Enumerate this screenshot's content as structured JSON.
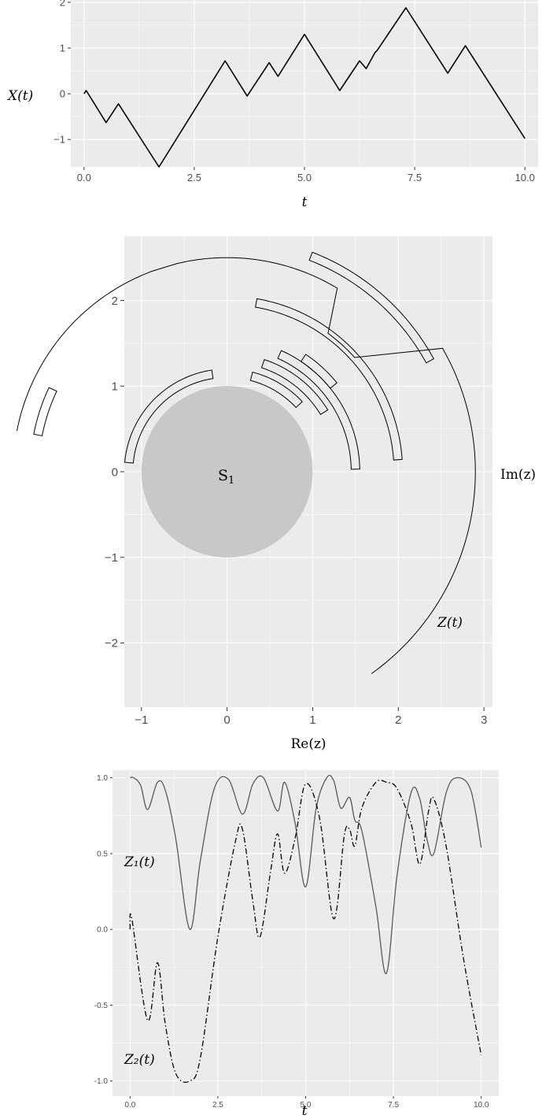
{
  "chart_data": [
    {
      "type": "line",
      "ylabel": "X(t)",
      "xlabel": "t",
      "xlim": [
        -0.3,
        10.3
      ],
      "ylim": [
        -1.6,
        2.05
      ],
      "x_ticks": [
        0.0,
        2.5,
        5.0,
        7.5,
        10.0
      ],
      "x_tick_labels": [
        "0.0",
        "2.5",
        "5.0",
        "7.5",
        "10.0"
      ],
      "y_ticks": [
        -1,
        0,
        1,
        2
      ],
      "y_tick_labels": [
        "−1",
        "0",
        "1",
        "2"
      ],
      "grid": true,
      "series": [
        {
          "color": "#000000",
          "x": [
            0.0,
            0.05,
            0.5,
            0.78,
            1.7,
            3.2,
            3.7,
            4.2,
            4.4,
            5.0,
            5.8,
            6.25,
            6.4,
            6.6,
            6.65,
            7.3,
            8.25,
            8.65,
            10.0
          ],
          "y": [
            0.0,
            0.07,
            -0.63,
            -0.22,
            -1.6,
            0.72,
            -0.05,
            0.68,
            0.38,
            1.3,
            0.07,
            0.72,
            0.55,
            0.9,
            0.95,
            1.88,
            0.45,
            1.05,
            -0.98
          ]
        }
      ]
    },
    {
      "type": "scatter",
      "xlabel": "Re(z)",
      "right_label": "Im(z)",
      "xlim": [
        -1.2,
        3.1
      ],
      "ylim": [
        -2.75,
        2.75
      ],
      "x_ticks": [
        -1,
        0,
        1,
        2,
        3
      ],
      "x_tick_labels": [
        "−1",
        "0",
        "1",
        "2",
        "3"
      ],
      "y_ticks": [
        -2,
        -1,
        0,
        1,
        2
      ],
      "y_tick_labels": [
        "−2",
        "−1",
        "0",
        "1",
        "2"
      ],
      "grid": true,
      "disk": {
        "center": [
          0,
          0
        ],
        "radius": 1,
        "color": "#c8c8c8",
        "label": "S"
      },
      "disk_label_sub": "1",
      "curve_label": "Z(t)",
      "curve": {
        "arcs": [
          {
            "r": 2.5,
            "t_start": 0.0,
            "t_end": 1.7
          },
          {
            "r": 2.5,
            "t_start": 1.9,
            "t_end": 3.2
          },
          {
            "r": 2.0,
            "t_start": 3.35,
            "t_end": 3.7
          },
          {
            "r": 2.9,
            "t_start": 4.05,
            "t_end": 6.5
          }
        ]
      },
      "ribbons": [
        {
          "r_in": 1.1,
          "r_out": 1.2,
          "theta_start": 1.72,
          "theta_end": 3.05
        },
        {
          "r_in": 1.1,
          "r_out": 1.2,
          "theta_start": 0.75,
          "theta_end": 1.32
        },
        {
          "r_in": 1.28,
          "r_out": 1.38,
          "theta_start": 0.55,
          "theta_end": 1.25
        },
        {
          "r_in": 1.45,
          "r_out": 1.55,
          "theta_start": 0.02,
          "theta_end": 1.15
        },
        {
          "r_in": 1.95,
          "r_out": 2.05,
          "theta_start": 0.07,
          "theta_end": 1.4
        },
        {
          "r_in": 2.2,
          "r_out": 2.3,
          "theta_start": 2.7,
          "theta_end": 2.95
        },
        {
          "r_in": 1.55,
          "r_out": 1.65,
          "theta_start": 0.68,
          "theta_end": 0.98
        },
        {
          "r_in": 2.65,
          "r_out": 2.75,
          "theta_start": 0.5,
          "theta_end": 1.2
        }
      ]
    },
    {
      "type": "line",
      "xlabel": "t",
      "xlim": [
        -0.5,
        10.5
      ],
      "ylim": [
        -1.1,
        1.05
      ],
      "x_ticks": [
        0.0,
        2.5,
        5.0,
        7.5,
        10.0
      ],
      "x_tick_labels": [
        "0.0",
        "2.5",
        "5.0",
        "7.5",
        "10.0"
      ],
      "y_ticks": [
        -1.0,
        -0.5,
        0.0,
        0.5,
        1.0
      ],
      "y_tick_labels": [
        "-1.0",
        "-0.5",
        "0.0",
        "0.5",
        "1.0"
      ],
      "grid": true,
      "series": [
        {
          "name": "Z₁(t)",
          "color": "#595959",
          "dash": "solid",
          "x": [
            0.0,
            0.1,
            0.3,
            0.5,
            0.78,
            1.0,
            1.3,
            1.7,
            2.0,
            2.4,
            2.8,
            3.2,
            3.5,
            3.8,
            4.2,
            4.4,
            4.7,
            5.0,
            5.3,
            5.6,
            5.8,
            6.0,
            6.25,
            6.4,
            6.6,
            7.0,
            7.3,
            7.6,
            8.0,
            8.25,
            8.45,
            8.65,
            9.0,
            9.3,
            9.7,
            10.0
          ],
          "y": [
            1.0,
            1.0,
            0.95,
            0.79,
            0.97,
            0.92,
            0.6,
            0.0,
            0.45,
            0.93,
            0.99,
            0.76,
            0.96,
            1.0,
            0.78,
            0.97,
            0.7,
            0.28,
            0.8,
            1.0,
            0.98,
            0.8,
            0.87,
            0.72,
            0.65,
            0.15,
            -0.29,
            0.35,
            0.9,
            0.86,
            0.6,
            0.5,
            0.9,
            1.0,
            0.92,
            0.54
          ]
        },
        {
          "name": "Z₂(t)",
          "color": "#000000",
          "dash": "dashdot",
          "x": [
            0.0,
            0.05,
            0.5,
            0.78,
            1.0,
            1.3,
            1.7,
            2.0,
            2.5,
            3.0,
            3.2,
            3.5,
            3.7,
            4.0,
            4.2,
            4.4,
            4.7,
            5.0,
            5.4,
            5.8,
            6.1,
            6.25,
            6.4,
            6.6,
            7.0,
            7.3,
            7.6,
            8.0,
            8.25,
            8.5,
            8.65,
            9.0,
            9.5,
            10.0
          ],
          "y": [
            0.0,
            0.07,
            -0.6,
            -0.22,
            -0.62,
            -0.95,
            -1.0,
            -0.85,
            -0.05,
            0.58,
            0.66,
            0.18,
            -0.05,
            0.38,
            0.63,
            0.37,
            0.6,
            0.96,
            0.73,
            0.07,
            0.62,
            0.66,
            0.55,
            0.8,
            0.97,
            0.97,
            0.93,
            0.7,
            0.43,
            0.78,
            0.86,
            0.55,
            -0.2,
            -0.83
          ]
        }
      ]
    }
  ]
}
